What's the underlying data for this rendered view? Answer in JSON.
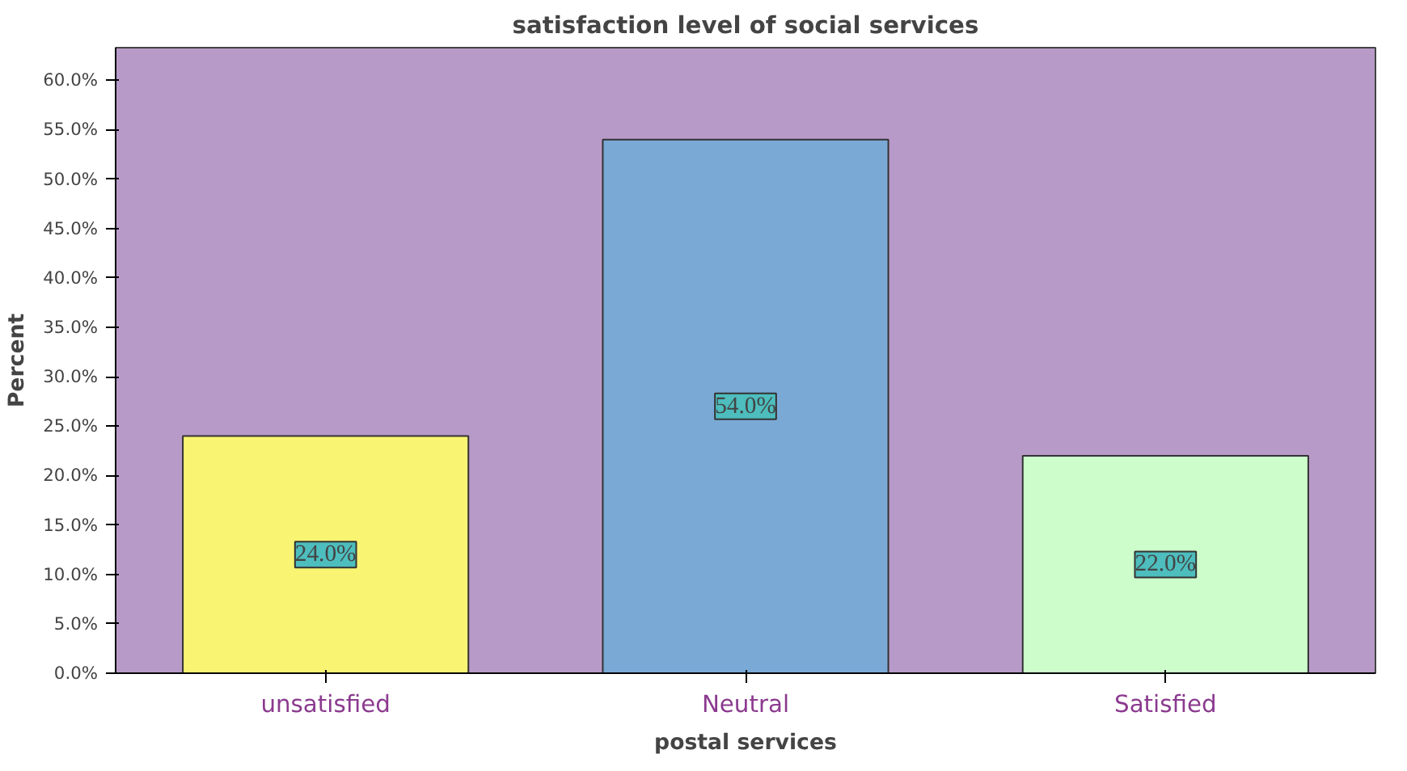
{
  "chart_data": {
    "type": "bar",
    "title": "satisfaction level of social services",
    "xlabel": "postal services",
    "ylabel": "Percent",
    "categories": [
      "unsatisfied",
      "Neutral",
      "Satisfied"
    ],
    "values": [
      24.0,
      54.0,
      22.0
    ],
    "colors": [
      "#f9f573",
      "#7aa9d6",
      "#ccfdcb"
    ],
    "value_labels": [
      "24.0%",
      "54.0%",
      "22.0%"
    ],
    "ylim": [
      0,
      63.3
    ],
    "yticks": [
      {
        "value": 0,
        "label": "0.0%"
      },
      {
        "value": 5,
        "label": "5.0%"
      },
      {
        "value": 10,
        "label": "10.0%"
      },
      {
        "value": 15,
        "label": "15.0%"
      },
      {
        "value": 20,
        "label": "20.0%"
      },
      {
        "value": 25,
        "label": "25.0%"
      },
      {
        "value": 30,
        "label": "30.0%"
      },
      {
        "value": 35,
        "label": "35.0%"
      },
      {
        "value": 40,
        "label": "40.0%"
      },
      {
        "value": 45,
        "label": "45.0%"
      },
      {
        "value": 50,
        "label": "50.0%"
      },
      {
        "value": 55,
        "label": "55.0%"
      },
      {
        "value": 60,
        "label": "60.0%"
      }
    ],
    "grid": false
  }
}
